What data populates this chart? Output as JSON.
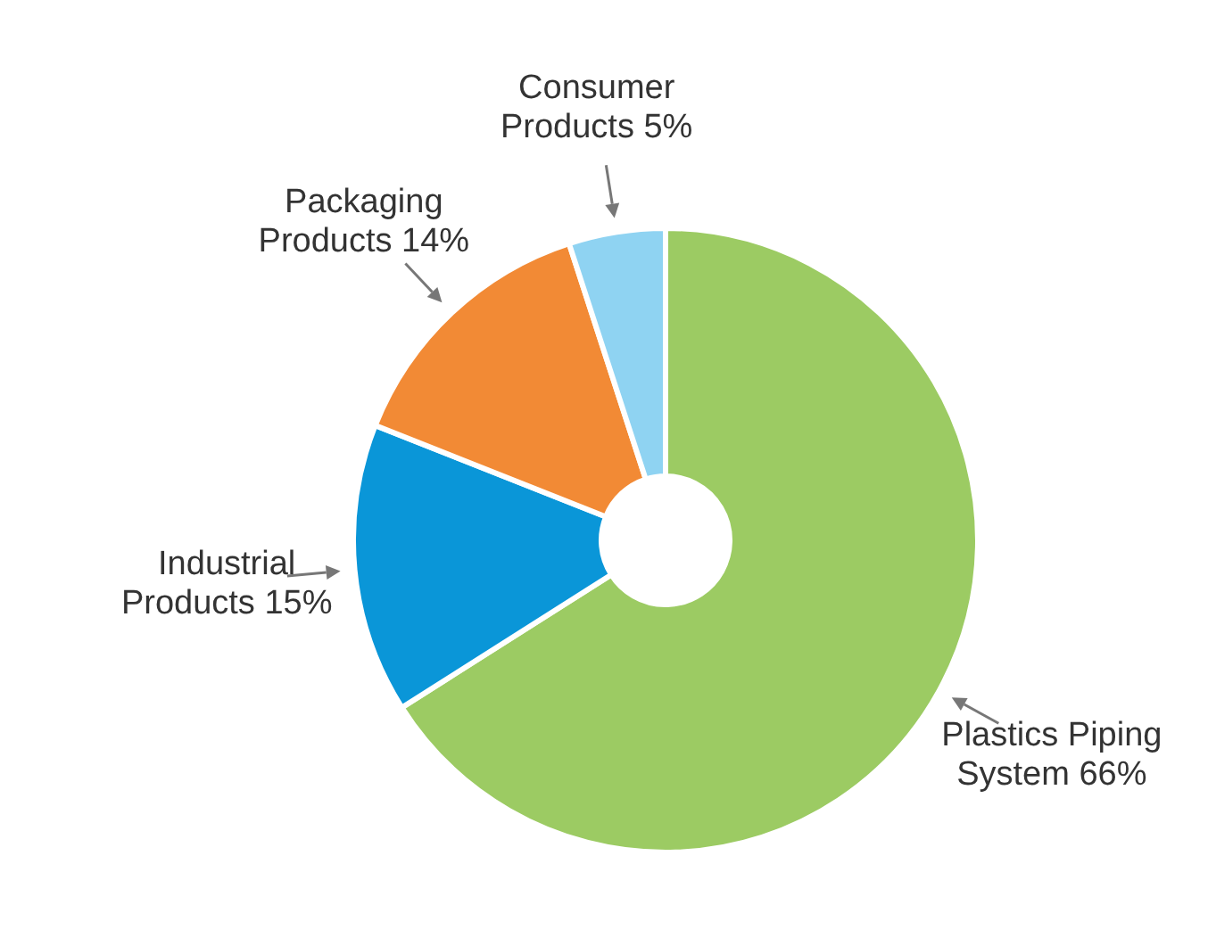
{
  "chart_data": {
    "type": "donut",
    "categories": [
      "Plastics Piping System",
      "Industrial Products",
      "Packaging Products",
      "Consumer Products"
    ],
    "values": [
      66,
      15,
      14,
      5
    ],
    "colors": [
      "#9ccb63",
      "#0a96d8",
      "#f28a35",
      "#8fd3f2"
    ],
    "value_labels": [
      "66%",
      "15%",
      "14%",
      "5%"
    ],
    "legend": false
  }
}
